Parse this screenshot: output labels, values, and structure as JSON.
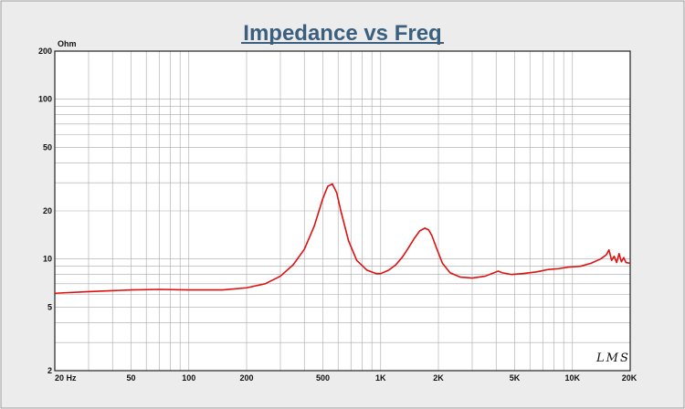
{
  "colors": {
    "frame_bg": "#ececec",
    "plot_bg": "#ffffff",
    "grid": "#a9a9a9",
    "curve": "#e01010",
    "title": "#3b5f7e",
    "text": "#111111"
  },
  "chart_data": {
    "type": "line",
    "title": "Impedance vs Freq",
    "ylabel": "Ohm",
    "xlabel": "",
    "x_scale": "log",
    "y_scale": "log",
    "xlim": [
      20,
      20000
    ],
    "ylim": [
      2,
      200
    ],
    "grid": true,
    "legend": "none",
    "logo_text": "LMS",
    "x_ticks": [
      {
        "value": 20,
        "label": "20  Hz"
      },
      {
        "value": 50,
        "label": "50"
      },
      {
        "value": 100,
        "label": "100"
      },
      {
        "value": 200,
        "label": "200"
      },
      {
        "value": 500,
        "label": "500"
      },
      {
        "value": 1000,
        "label": "1K"
      },
      {
        "value": 2000,
        "label": "2K"
      },
      {
        "value": 5000,
        "label": "5K"
      },
      {
        "value": 10000,
        "label": "10K"
      },
      {
        "value": 20000,
        "label": "20K"
      }
    ],
    "y_ticks": [
      {
        "value": 2,
        "label": "2"
      },
      {
        "value": 5,
        "label": "5"
      },
      {
        "value": 10,
        "label": "10"
      },
      {
        "value": 20,
        "label": "20"
      },
      {
        "value": 50,
        "label": "50"
      },
      {
        "value": 100,
        "label": "100"
      },
      {
        "value": 200,
        "label": "200"
      }
    ],
    "series": [
      {
        "values_hz": [
          20,
          30,
          50,
          70,
          100,
          150,
          200,
          250,
          300,
          350,
          400,
          450,
          500,
          530,
          560,
          590,
          620,
          680,
          750,
          850,
          950,
          1000,
          1100,
          1200,
          1300,
          1400,
          1500,
          1600,
          1700,
          1780,
          1850,
          1950,
          2100,
          2300,
          2600,
          3000,
          3500,
          3900,
          4100,
          4300,
          4800,
          5500,
          6500,
          7500,
          8500,
          9500,
          11000,
          12500,
          14000,
          15000,
          15500,
          16000,
          16500,
          17000,
          17500,
          18000,
          18500,
          19000,
          20000
        ],
        "values_ohm": [
          6.1,
          6.25,
          6.4,
          6.45,
          6.4,
          6.4,
          6.6,
          7.0,
          7.8,
          9.2,
          11.5,
          16.0,
          24.0,
          28.5,
          29.5,
          26.0,
          20.0,
          13.0,
          9.8,
          8.5,
          8.1,
          8.1,
          8.5,
          9.2,
          10.3,
          11.8,
          13.5,
          15.0,
          15.6,
          15.2,
          14.0,
          11.8,
          9.4,
          8.2,
          7.7,
          7.6,
          7.8,
          8.2,
          8.4,
          8.2,
          8.0,
          8.1,
          8.3,
          8.6,
          8.7,
          8.9,
          9.0,
          9.4,
          10.0,
          10.6,
          11.4,
          9.8,
          10.4,
          9.5,
          10.8,
          9.6,
          10.2,
          9.5,
          9.4
        ]
      }
    ]
  }
}
